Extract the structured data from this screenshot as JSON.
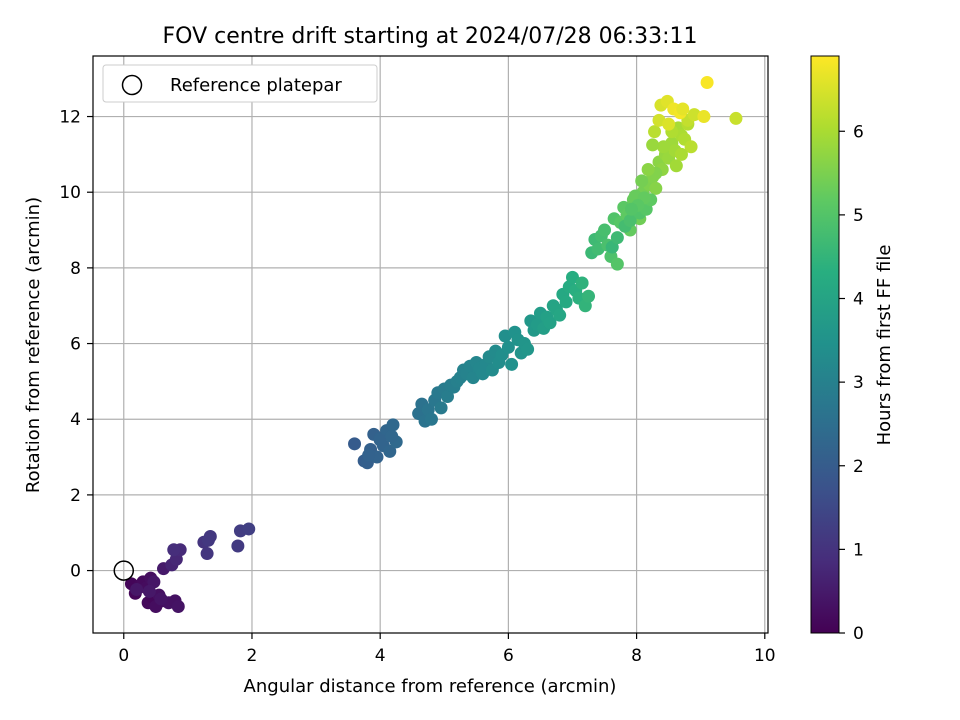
{
  "chart_data": {
    "type": "scatter",
    "title": "FOV centre drift starting at 2024/07/28 06:33:11",
    "xlabel": "Angular distance from reference (arcmin)",
    "ylabel": "Rotation from reference (arcmin)",
    "xlim": [
      -0.48,
      10.05
    ],
    "ylim": [
      -1.65,
      13.6
    ],
    "xticks": [
      0,
      2,
      4,
      6,
      8,
      10
    ],
    "yticks": [
      0,
      2,
      4,
      6,
      8,
      10,
      12
    ],
    "grid": true,
    "legend": {
      "position": "top-left",
      "entries": [
        "Reference platepar"
      ]
    },
    "reference_point": {
      "x": 0,
      "y": 0,
      "label": "Reference platepar"
    },
    "colorbar": {
      "label": "Hours from first FF file",
      "range": [
        0,
        6.9
      ],
      "ticks": [
        0,
        1,
        2,
        3,
        4,
        5,
        6
      ],
      "colormap": "viridis"
    },
    "series": [
      {
        "color_by": "hours",
        "x": [
          0.12,
          0.18,
          0.25,
          0.3,
          0.35,
          0.42,
          0.38,
          0.5,
          0.45,
          0.55,
          0.6,
          0.5,
          0.7,
          0.8,
          0.85,
          0.62,
          0.47,
          0.58,
          0.2,
          0.4,
          0.75,
          0.82,
          0.88,
          0.78,
          1.25,
          1.3,
          1.35,
          1.32,
          1.78,
          1.82,
          1.95,
          3.6,
          3.75,
          3.8,
          3.85,
          3.9,
          3.95,
          4.0,
          4.05,
          4.1,
          4.15,
          4.2,
          4.25,
          3.82,
          4.0,
          4.18,
          4.6,
          4.65,
          4.7,
          4.75,
          4.8,
          4.85,
          4.9,
          4.95,
          5.0,
          5.05,
          5.1,
          5.15,
          5.2,
          5.25,
          5.3,
          5.35,
          5.4,
          5.45,
          5.5,
          5.55,
          5.6,
          5.65,
          5.7,
          5.75,
          5.8,
          5.85,
          5.9,
          5.95,
          6.0,
          6.05,
          6.1,
          6.15,
          6.2,
          6.25,
          6.3,
          6.35,
          6.4,
          6.45,
          6.5,
          6.55,
          6.6,
          6.65,
          6.7,
          6.75,
          6.8,
          6.85,
          6.9,
          6.95,
          7.0,
          7.05,
          7.1,
          7.15,
          7.2,
          7.25,
          7.3,
          7.35,
          7.4,
          7.45,
          7.5,
          7.55,
          7.6,
          7.65,
          7.7,
          7.75,
          7.8,
          7.85,
          7.9,
          7.95,
          8.0,
          8.05,
          8.1,
          8.15,
          8.2,
          8.25,
          8.3,
          8.35,
          8.4,
          8.45,
          8.5,
          8.55,
          8.6,
          8.65,
          8.7,
          8.75,
          8.8,
          8.85,
          7.62,
          7.7,
          7.82,
          7.9,
          8.05,
          8.15,
          8.22,
          8.3,
          8.42,
          8.55,
          8.62,
          8.7,
          8.8,
          8.9,
          9.1,
          9.05,
          9.55,
          8.38,
          8.48,
          8.58,
          8.68,
          8.28,
          8.35,
          8.5,
          8.72,
          7.98,
          8.08,
          8.12,
          8.18,
          8.25,
          8.02,
          7.92
        ],
        "y": [
          -0.35,
          -0.6,
          -0.4,
          -0.3,
          -0.45,
          -0.2,
          -0.85,
          -0.9,
          -0.7,
          -0.65,
          -0.8,
          -0.95,
          -0.85,
          -0.8,
          -0.95,
          0.05,
          -0.3,
          -0.75,
          -0.5,
          -0.55,
          0.15,
          0.3,
          0.55,
          0.55,
          0.75,
          0.45,
          0.9,
          0.8,
          0.65,
          1.05,
          1.1,
          3.35,
          2.9,
          2.85,
          3.2,
          3.6,
          3.0,
          3.5,
          3.3,
          3.7,
          3.15,
          3.85,
          3.4,
          3.05,
          3.45,
          3.55,
          4.15,
          4.4,
          3.95,
          4.25,
          4.0,
          4.5,
          4.7,
          4.3,
          4.8,
          4.6,
          4.9,
          4.85,
          5.0,
          5.1,
          5.3,
          5.2,
          5.4,
          5.1,
          5.5,
          5.35,
          5.2,
          5.45,
          5.65,
          5.3,
          5.8,
          5.5,
          5.7,
          6.2,
          5.9,
          5.45,
          6.3,
          6.1,
          5.75,
          6.0,
          5.85,
          6.6,
          6.35,
          6.5,
          6.8,
          6.4,
          6.7,
          6.55,
          7.0,
          6.9,
          6.75,
          7.3,
          7.1,
          7.5,
          7.75,
          7.4,
          7.2,
          7.6,
          7.0,
          7.25,
          8.4,
          8.75,
          8.5,
          8.85,
          9.0,
          8.6,
          8.3,
          9.3,
          8.1,
          9.2,
          9.6,
          9.4,
          9.0,
          9.8,
          9.5,
          9.3,
          10.0,
          9.7,
          10.2,
          10.4,
          10.1,
          10.8,
          10.6,
          11.0,
          10.9,
          11.3,
          11.1,
          11.7,
          11.5,
          11.4,
          11.8,
          11.2,
          8.55,
          8.8,
          9.1,
          9.25,
          9.45,
          9.55,
          9.8,
          10.5,
          11.2,
          11.6,
          10.7,
          11.0,
          11.9,
          12.05,
          12.9,
          12.0,
          11.95,
          12.3,
          12.4,
          12.2,
          12.1,
          11.6,
          11.9,
          11.8,
          12.2,
          9.9,
          10.3,
          9.85,
          10.6,
          11.25,
          9.65,
          9.55
        ],
        "c": [
          0.08,
          0.1,
          0.14,
          0.18,
          0.22,
          0.26,
          0.16,
          0.2,
          0.12,
          0.3,
          0.28,
          0.24,
          0.34,
          0.32,
          0.36,
          0.5,
          0.4,
          0.38,
          0.44,
          0.46,
          0.7,
          0.78,
          0.85,
          0.9,
          1.05,
          1.1,
          1.12,
          1.15,
          1.2,
          1.25,
          1.3,
          2.0,
          2.05,
          2.1,
          2.12,
          2.15,
          2.2,
          2.22,
          2.25,
          2.28,
          2.3,
          2.35,
          2.38,
          2.18,
          2.24,
          2.32,
          2.6,
          2.62,
          2.65,
          2.7,
          2.72,
          2.75,
          2.8,
          2.82,
          2.85,
          2.9,
          2.92,
          2.95,
          3.0,
          3.02,
          3.05,
          3.08,
          3.1,
          3.12,
          3.15,
          3.18,
          3.2,
          3.22,
          3.25,
          3.28,
          3.3,
          3.35,
          3.38,
          3.4,
          3.42,
          3.45,
          3.48,
          3.52,
          3.55,
          3.58,
          3.6,
          3.65,
          3.7,
          3.75,
          3.8,
          3.85,
          3.9,
          3.95,
          4.0,
          4.05,
          4.1,
          4.15,
          4.2,
          4.25,
          4.3,
          4.35,
          4.4,
          4.45,
          4.5,
          4.55,
          4.65,
          4.7,
          4.75,
          4.8,
          4.85,
          4.9,
          4.95,
          5.0,
          5.05,
          5.1,
          5.15,
          5.2,
          5.25,
          5.3,
          5.35,
          5.4,
          5.45,
          5.5,
          5.55,
          5.6,
          5.65,
          5.7,
          5.75,
          5.8,
          5.85,
          5.9,
          5.95,
          6.0,
          6.05,
          6.1,
          6.15,
          6.2,
          4.6,
          4.7,
          4.8,
          4.9,
          5.0,
          5.1,
          5.2,
          5.6,
          5.9,
          6.1,
          5.95,
          6.05,
          6.3,
          6.4,
          6.85,
          6.7,
          6.35,
          6.5,
          6.6,
          6.75,
          6.8,
          6.2,
          6.45,
          6.55,
          6.65,
          5.3,
          5.45,
          5.25,
          5.7,
          5.85,
          5.15,
          5.05
        ]
      }
    ]
  }
}
